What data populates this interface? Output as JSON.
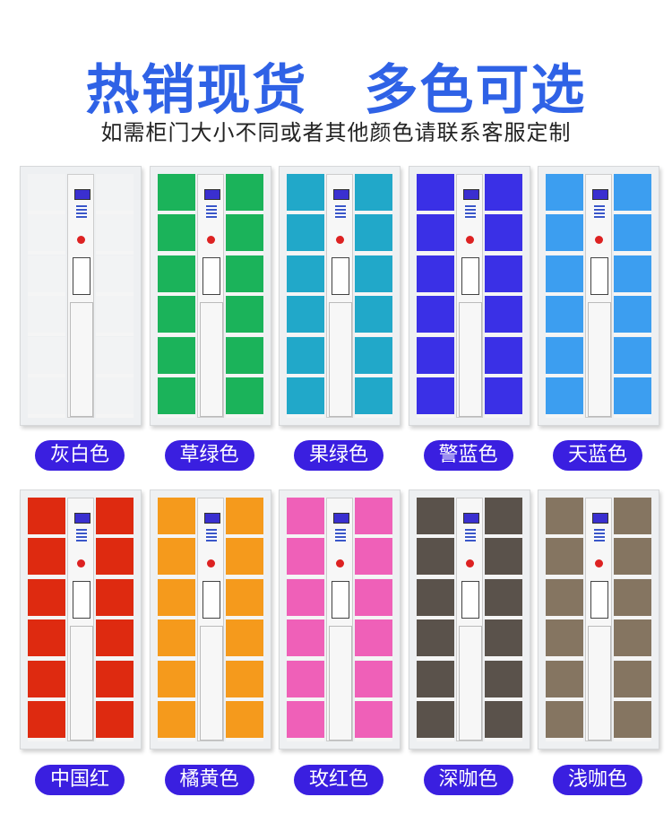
{
  "header": {
    "title_part1": "热销现货",
    "title_part2": "多色可选",
    "subtitle": "如需柜门大小不同或者其他颜色请联系客服定制"
  },
  "lockers": [
    {
      "name": "灰白色",
      "color": "#f2f3f4"
    },
    {
      "name": "草绿色",
      "color": "#1bb35a"
    },
    {
      "name": "果绿色",
      "color": "#21a8c9"
    },
    {
      "name": "警蓝色",
      "color": "#3a30e6"
    },
    {
      "name": "天蓝色",
      "color": "#3c9ef0"
    },
    {
      "name": "中国红",
      "color": "#de2a10"
    },
    {
      "name": "橘黄色",
      "color": "#f59a1c"
    },
    {
      "name": "玫红色",
      "color": "#ef60b8"
    },
    {
      "name": "深咖色",
      "color": "#5a524b"
    },
    {
      "name": "浅咖色",
      "color": "#857561"
    }
  ],
  "label_color": "#3a1fe0"
}
